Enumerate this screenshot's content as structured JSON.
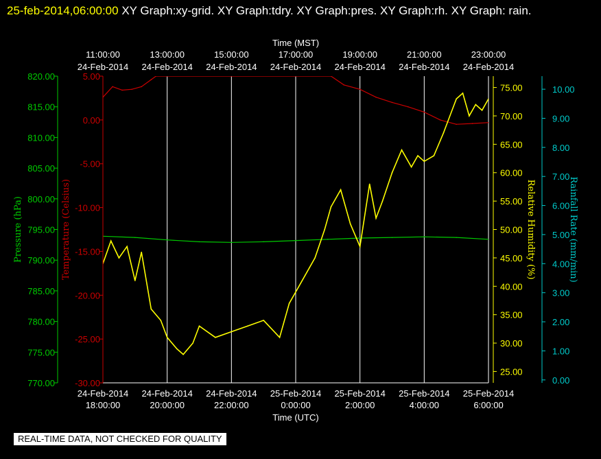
{
  "header": {
    "timestamp": "25-feb-2014,06:00:00",
    "title_rest": "  XY Graph:xy-grid.  XY Graph:tdry.  XY Graph:pres.  XY Graph:rh.  XY Graph: rain."
  },
  "footer_badge": "REAL-TIME DATA, NOT CHECKED FOR QUALITY",
  "colors": {
    "background": "#000000",
    "grid": "#ffffff",
    "pressure": "#00cc00",
    "temperature": "#cc0000",
    "humidity": "#ffff00",
    "rain": "#00cccc"
  },
  "chart_data": {
    "type": "line",
    "grid": true,
    "x": {
      "label_bottom": "Time (UTC)",
      "label_top": "Time (MST)",
      "range_hours_utc": [
        0,
        12
      ],
      "top_ticks": [
        {
          "time": "11:00:00",
          "date": "24-Feb-2014"
        },
        {
          "time": "13:00:00",
          "date": "24-Feb-2014"
        },
        {
          "time": "15:00:00",
          "date": "24-Feb-2014"
        },
        {
          "time": "17:00:00",
          "date": "24-Feb-2014"
        },
        {
          "time": "19:00:00",
          "date": "24-Feb-2014"
        },
        {
          "time": "21:00:00",
          "date": "24-Feb-2014"
        },
        {
          "time": "23:00:00",
          "date": "24-Feb-2014"
        }
      ],
      "bottom_ticks": [
        {
          "date": "24-Feb-2014",
          "time": "18:00:00"
        },
        {
          "date": "24-Feb-2014",
          "time": "20:00:00"
        },
        {
          "date": "24-Feb-2014",
          "time": "22:00:00"
        },
        {
          "date": "25-Feb-2014",
          "time": "0:00:00"
        },
        {
          "date": "25-Feb-2014",
          "time": "2:00:00"
        },
        {
          "date": "25-Feb-2014",
          "time": "4:00:00"
        },
        {
          "date": "25-Feb-2014",
          "time": "6:00:00"
        }
      ]
    },
    "axes": {
      "pressure": {
        "label": "Pressure (hPa)",
        "min": 770,
        "max": 820,
        "ticks": [
          "770.00",
          "775.00",
          "780.00",
          "785.00",
          "790.00",
          "795.00",
          "800.00",
          "805.00",
          "810.00",
          "815.00",
          "820.00"
        ]
      },
      "temperature": {
        "label": "Temperature (Celsius)",
        "min": -30,
        "max": 5,
        "ticks": [
          "-30.00",
          "-25.00",
          "-20.00",
          "-15.00",
          "-10.00",
          "-5.00",
          "0.00",
          "5.00"
        ]
      },
      "humidity": {
        "label": "Relative Humidity (%)",
        "min": 23,
        "max": 77,
        "ticks": [
          "25.00",
          "30.00",
          "35.00",
          "40.00",
          "45.00",
          "50.00",
          "55.00",
          "60.00",
          "65.00",
          "70.00",
          "75.00"
        ]
      },
      "rain": {
        "label": "Rainfall Rate (mm/min)",
        "min": -0.1,
        "max": 10.45,
        "ticks": [
          "0.00",
          "1.00",
          "2.00",
          "3.00",
          "4.00",
          "5.00",
          "6.00",
          "7.00",
          "8.00",
          "9.00",
          "10.00"
        ]
      }
    },
    "series": [
      {
        "key": "pressure",
        "axis": "pressure",
        "x": [
          0,
          1,
          2,
          3,
          4,
          5,
          6,
          7,
          8,
          9,
          10,
          11,
          12
        ],
        "y": [
          793.9,
          793.7,
          793.3,
          793.0,
          792.9,
          793.0,
          793.2,
          793.4,
          793.6,
          793.7,
          793.8,
          793.7,
          793.4
        ]
      },
      {
        "key": "temperature",
        "axis": "temperature",
        "x": [
          0,
          0.3,
          0.6,
          0.9,
          1.2,
          1.5,
          1.65,
          7.1,
          7.5,
          8,
          8.5,
          9,
          9.5,
          10,
          10.5,
          11,
          11.5,
          12
        ],
        "y": [
          2.6,
          3.8,
          3.4,
          3.5,
          3.8,
          4.6,
          5.0,
          5.0,
          4.0,
          3.5,
          2.6,
          2.0,
          1.5,
          0.9,
          0.0,
          -0.5,
          -0.4,
          -0.3
        ]
      },
      {
        "key": "humidity",
        "axis": "humidity",
        "x": [
          0,
          0.25,
          0.5,
          0.75,
          1,
          1.2,
          1.5,
          1.8,
          2,
          2.3,
          2.5,
          2.8,
          3,
          3.5,
          4,
          4.5,
          5,
          5.5,
          5.8,
          6,
          6.3,
          6.6,
          6.9,
          7.1,
          7.4,
          7.7,
          8,
          8.3,
          8.5,
          8.7,
          9,
          9.3,
          9.6,
          9.8,
          10,
          10.3,
          10.6,
          10.8,
          11,
          11.2,
          11.4,
          11.6,
          11.8,
          12
        ],
        "y": [
          44,
          48,
          45,
          47,
          41,
          46,
          36,
          34,
          31,
          29,
          28,
          30,
          33,
          31,
          32,
          33,
          34,
          31,
          37,
          39,
          42,
          45,
          50,
          54,
          57,
          51,
          47,
          58,
          52,
          55,
          60,
          64,
          61,
          63,
          62,
          63,
          67,
          70,
          73,
          74,
          70,
          72,
          71,
          73
        ]
      },
      {
        "key": "rain",
        "axis": "rain",
        "x": [],
        "y": []
      }
    ]
  }
}
